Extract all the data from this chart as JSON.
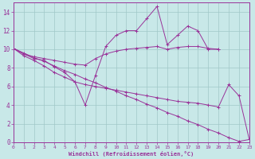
{
  "xlabel": "Windchill (Refroidissement éolien,°C)",
  "bg_color": "#c8e8e8",
  "line_color": "#993399",
  "grid_color": "#a0c8c8",
  "xlim": [
    0,
    23
  ],
  "ylim": [
    0,
    15
  ],
  "xticks": [
    0,
    1,
    2,
    3,
    4,
    5,
    6,
    7,
    8,
    9,
    10,
    11,
    12,
    13,
    14,
    15,
    16,
    17,
    18,
    19,
    20,
    21,
    22,
    23
  ],
  "yticks": [
    0,
    2,
    4,
    6,
    8,
    10,
    12,
    14
  ],
  "lines": [
    {
      "x": [
        0,
        1,
        2,
        3,
        4,
        5,
        6,
        7,
        8,
        9,
        10,
        11,
        12,
        13,
        14,
        15,
        16,
        17,
        18,
        19,
        20
      ],
      "y": [
        10.1,
        9.5,
        9.0,
        8.8,
        8.1,
        7.5,
        6.5,
        4.0,
        7.2,
        10.3,
        11.5,
        12.0,
        12.0,
        13.3,
        14.6,
        10.5,
        11.5,
        12.5,
        12.0,
        10.0,
        10.0
      ]
    },
    {
      "x": [
        0,
        1,
        2,
        3,
        4,
        5,
        6,
        7,
        8,
        9,
        10,
        11,
        12,
        13,
        14,
        15,
        16,
        17,
        18,
        19,
        20
      ],
      "y": [
        10.1,
        9.5,
        9.2,
        9.0,
        8.8,
        8.6,
        8.4,
        8.3,
        9.0,
        9.5,
        9.8,
        10.0,
        10.1,
        10.2,
        10.3,
        10.0,
        10.2,
        10.3,
        10.3,
        10.1,
        10.0
      ]
    },
    {
      "x": [
        0,
        1,
        2,
        3,
        4,
        5,
        6,
        7,
        8,
        9,
        10,
        11,
        12,
        13,
        14,
        15,
        16,
        17,
        18,
        19,
        20,
        21,
        22,
        23
      ],
      "y": [
        10.1,
        9.3,
        8.8,
        8.2,
        7.5,
        7.0,
        6.5,
        6.2,
        6.0,
        5.8,
        5.6,
        5.4,
        5.2,
        5.0,
        4.8,
        4.6,
        4.4,
        4.3,
        4.2,
        4.0,
        3.8,
        6.2,
        5.0,
        0.3
      ]
    },
    {
      "x": [
        0,
        1,
        2,
        3,
        4,
        5,
        6,
        7,
        8,
        9,
        10,
        11,
        12,
        13,
        14,
        15,
        16,
        17,
        18,
        19,
        20,
        21,
        22,
        23
      ],
      "y": [
        10.1,
        9.6,
        9.1,
        8.7,
        8.2,
        7.7,
        7.3,
        6.8,
        6.4,
        5.9,
        5.5,
        5.0,
        4.6,
        4.1,
        3.7,
        3.2,
        2.8,
        2.3,
        1.9,
        1.4,
        1.0,
        0.5,
        0.1,
        0.3
      ]
    }
  ]
}
